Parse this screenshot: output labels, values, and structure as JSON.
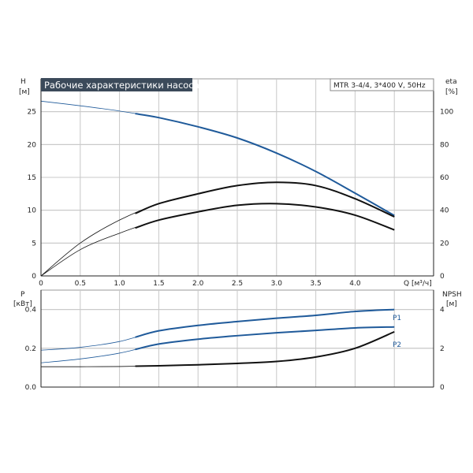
{
  "chart_data": [
    {
      "type": "line",
      "title": "Рабочие характеристики насоса",
      "subtitle": "MTR 3-4/4, 3*400 V, 50Hz",
      "left_axis": {
        "label_top": "H",
        "label_unit": "[м]",
        "ylim": [
          0,
          30
        ],
        "ticks": [
          "0",
          "5",
          "10",
          "15",
          "20",
          "25"
        ],
        "tick_values": [
          0,
          5,
          10,
          15,
          20,
          25
        ]
      },
      "right_axis": {
        "label_top": "eta",
        "label_unit": "[%]",
        "ylim": [
          0,
          120
        ],
        "ticks": [
          "0",
          "20",
          "40",
          "60",
          "80",
          "100"
        ],
        "tick_values": [
          0,
          20,
          40,
          60,
          80,
          100
        ]
      },
      "x_axis": {
        "label": "Q [м³/ч]",
        "xlim": [
          0,
          5
        ],
        "ticks": [
          "0",
          "0.5",
          "1.0",
          "1.5",
          "2.0",
          "2.5",
          "3.0",
          "3.5",
          "4.0"
        ],
        "tick_values": [
          0,
          0.5,
          1.0,
          1.5,
          2.0,
          2.5,
          3.0,
          3.5,
          4.0
        ]
      },
      "grid": true,
      "series": [
        {
          "axis": "left",
          "color": "#1f5a9a",
          "op_start": 1.2,
          "x": [
            0,
            0.5,
            1.0,
            1.5,
            2.0,
            2.5,
            3.0,
            3.5,
            4.0,
            4.5
          ],
          "y": [
            26.6,
            25.9,
            25.1,
            24.1,
            22.7,
            21.0,
            18.7,
            15.9,
            12.6,
            9.2
          ]
        },
        {
          "axis": "right",
          "color": "#111111",
          "op_start": 1.2,
          "x": [
            0,
            0.5,
            1.0,
            1.5,
            2.0,
            2.5,
            3.0,
            3.5,
            4.0,
            4.5
          ],
          "y": [
            0,
            20,
            34,
            44,
            50,
            55,
            57,
            55,
            47,
            36
          ]
        },
        {
          "axis": "right",
          "color": "#111111",
          "op_start": 1.2,
          "x": [
            0,
            0.5,
            1.0,
            1.5,
            2.0,
            2.5,
            3.0,
            3.5,
            4.0,
            4.5
          ],
          "y": [
            0,
            16,
            26,
            34,
            39,
            43,
            44,
            42,
            37,
            28
          ]
        }
      ]
    },
    {
      "type": "line",
      "left_axis": {
        "label_top": "P",
        "label_unit": "[кВт]",
        "ylim": [
          0,
          0.5
        ],
        "ticks": [
          "0.0",
          "0.2",
          "0.4"
        ],
        "tick_values": [
          0,
          0.2,
          0.4
        ]
      },
      "right_axis": {
        "label_top": "NPSH",
        "label_unit": "[м]",
        "ylim": [
          0,
          5
        ],
        "ticks": [
          "0",
          "2",
          "4"
        ],
        "tick_values": [
          0,
          2,
          4
        ]
      },
      "x_axis": {
        "xlim": [
          0,
          5
        ],
        "tick_values": [
          0,
          0.5,
          1.0,
          1.5,
          2.0,
          2.5,
          3.0,
          3.5,
          4.0
        ]
      },
      "grid": true,
      "series": [
        {
          "name": "P1",
          "axis": "left",
          "color": "#1f5a9a",
          "op_start": 1.2,
          "x": [
            0,
            0.5,
            1.0,
            1.5,
            2.0,
            2.5,
            3.0,
            3.5,
            4.0,
            4.5
          ],
          "y": [
            0.19,
            0.205,
            0.235,
            0.29,
            0.318,
            0.338,
            0.355,
            0.37,
            0.39,
            0.4
          ]
        },
        {
          "name": "P2",
          "axis": "left",
          "color": "#1f5a9a",
          "op_start": 1.2,
          "x": [
            0,
            0.5,
            1.0,
            1.5,
            2.0,
            2.5,
            3.0,
            3.5,
            4.0,
            4.5
          ],
          "y": [
            0.125,
            0.145,
            0.175,
            0.222,
            0.247,
            0.265,
            0.28,
            0.292,
            0.305,
            0.31
          ]
        },
        {
          "axis": "right",
          "color": "#111111",
          "op_start": 1.2,
          "x": [
            0,
            0.5,
            1.0,
            1.5,
            2.0,
            2.5,
            3.0,
            3.5,
            4.0,
            4.5
          ],
          "y": [
            1.05,
            1.05,
            1.06,
            1.1,
            1.15,
            1.22,
            1.32,
            1.55,
            2.0,
            2.85
          ]
        }
      ]
    }
  ]
}
